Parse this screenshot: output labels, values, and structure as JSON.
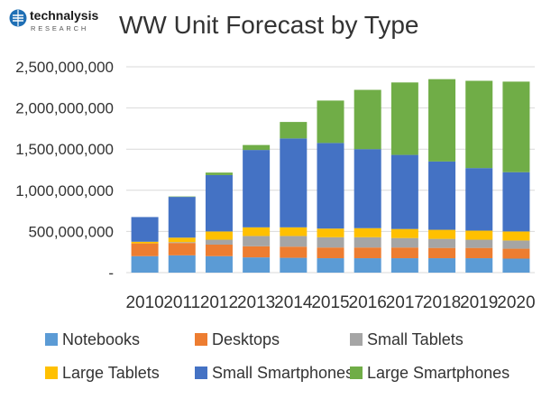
{
  "logo": {
    "name": "technalysis",
    "sub": "RESEARCH"
  },
  "chart_data": {
    "type": "bar",
    "stacked": true,
    "title": "WW Unit Forecast by Type",
    "xlabel": "",
    "ylabel": "",
    "ylim": [
      0,
      2500000000
    ],
    "yticks": [
      "-",
      "500,000,000",
      "1,000,000,000",
      "1,500,000,000",
      "2,000,000,000",
      "2,500,000,000"
    ],
    "grid": true,
    "legend_position": "bottom",
    "categories": [
      "2010",
      "2011",
      "2012",
      "2013",
      "2014",
      "2015",
      "2016",
      "2017",
      "2018",
      "2019",
      "2020"
    ],
    "series": [
      {
        "name": "Notebooks",
        "color": "#5b9bd5",
        "values": [
          200000000,
          210000000,
          200000000,
          185000000,
          180000000,
          175000000,
          175000000,
          175000000,
          175000000,
          175000000,
          170000000
        ]
      },
      {
        "name": "Desktops",
        "color": "#ed7d31",
        "values": [
          155000000,
          150000000,
          140000000,
          135000000,
          135000000,
          130000000,
          130000000,
          130000000,
          125000000,
          125000000,
          120000000
        ]
      },
      {
        "name": "Small Tablets",
        "color": "#a5a5a5",
        "values": [
          0,
          10000000,
          60000000,
          125000000,
          130000000,
          125000000,
          125000000,
          115000000,
          110000000,
          100000000,
          100000000
        ]
      },
      {
        "name": "Large Tablets",
        "color": "#ffc000",
        "values": [
          20000000,
          55000000,
          100000000,
          105000000,
          105000000,
          105000000,
          110000000,
          110000000,
          110000000,
          110000000,
          110000000
        ]
      },
      {
        "name": "Small Smartphones",
        "color": "#4472c4",
        "values": [
          300000000,
          495000000,
          685000000,
          940000000,
          1080000000,
          1040000000,
          960000000,
          900000000,
          830000000,
          760000000,
          720000000
        ]
      },
      {
        "name": "Large Smartphones",
        "color": "#70ad47",
        "values": [
          0,
          5000000,
          30000000,
          60000000,
          200000000,
          515000000,
          720000000,
          880000000,
          1000000000,
          1060000000,
          1100000000
        ]
      }
    ]
  }
}
